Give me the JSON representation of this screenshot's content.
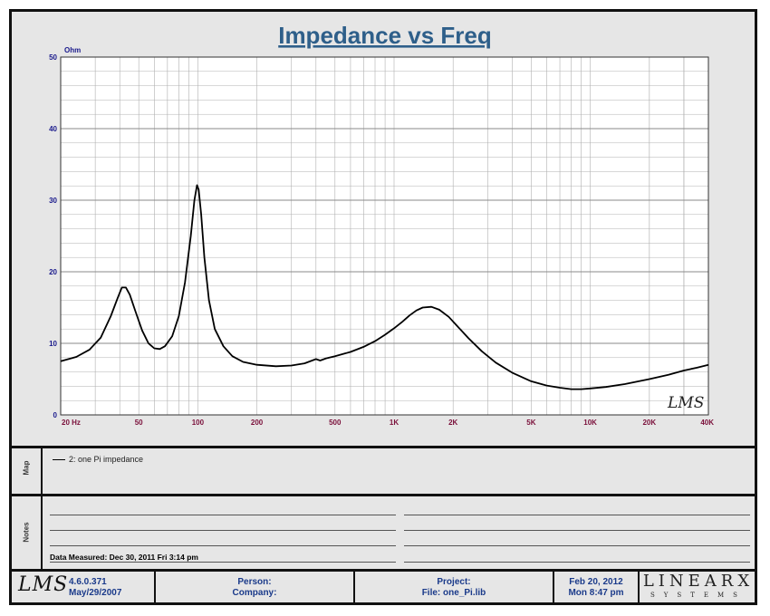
{
  "chart_data": {
    "type": "line",
    "title": "Impedance vs Freq",
    "ylabel": "Ohm",
    "xscale": "log",
    "xlim": [
      20,
      40000
    ],
    "ylim": [
      0,
      50
    ],
    "x_ticks": [
      {
        "value": 20,
        "label": "20  Hz"
      },
      {
        "value": 50,
        "label": "50"
      },
      {
        "value": 100,
        "label": "100"
      },
      {
        "value": 200,
        "label": "200"
      },
      {
        "value": 500,
        "label": "500"
      },
      {
        "value": 1000,
        "label": "1K"
      },
      {
        "value": 2000,
        "label": "2K"
      },
      {
        "value": 5000,
        "label": "5K"
      },
      {
        "value": 10000,
        "label": "10K"
      },
      {
        "value": 20000,
        "label": "20K"
      },
      {
        "value": 40000,
        "label": "40K"
      }
    ],
    "y_ticks": [
      0,
      10,
      20,
      30,
      40,
      50
    ],
    "grid": true,
    "series": [
      {
        "name": "2: one Pi impedance",
        "color": "#000000",
        "points": [
          [
            20,
            7.5
          ],
          [
            24,
            8.1
          ],
          [
            28,
            9.1
          ],
          [
            32,
            10.8
          ],
          [
            36,
            13.8
          ],
          [
            39,
            16.3
          ],
          [
            41,
            17.8
          ],
          [
            43,
            17.8
          ],
          [
            45,
            16.8
          ],
          [
            48,
            14.5
          ],
          [
            52,
            11.8
          ],
          [
            56,
            10.0
          ],
          [
            60,
            9.3
          ],
          [
            64,
            9.2
          ],
          [
            68,
            9.6
          ],
          [
            74,
            11.0
          ],
          [
            80,
            13.8
          ],
          [
            86,
            18.5
          ],
          [
            92,
            25.0
          ],
          [
            96,
            30.0
          ],
          [
            99,
            32.1
          ],
          [
            101,
            31.5
          ],
          [
            104,
            28.0
          ],
          [
            108,
            22.0
          ],
          [
            114,
            16.0
          ],
          [
            122,
            12.0
          ],
          [
            135,
            9.6
          ],
          [
            150,
            8.2
          ],
          [
            170,
            7.4
          ],
          [
            200,
            7.0
          ],
          [
            250,
            6.8
          ],
          [
            300,
            6.9
          ],
          [
            350,
            7.2
          ],
          [
            400,
            7.8
          ],
          [
            420,
            7.6
          ],
          [
            450,
            7.9
          ],
          [
            500,
            8.2
          ],
          [
            600,
            8.8
          ],
          [
            700,
            9.5
          ],
          [
            800,
            10.3
          ],
          [
            900,
            11.2
          ],
          [
            1000,
            12.1
          ],
          [
            1100,
            13.0
          ],
          [
            1200,
            13.9
          ],
          [
            1300,
            14.6
          ],
          [
            1400,
            15.0
          ],
          [
            1550,
            15.1
          ],
          [
            1700,
            14.7
          ],
          [
            1900,
            13.7
          ],
          [
            2100,
            12.4
          ],
          [
            2400,
            10.7
          ],
          [
            2800,
            8.9
          ],
          [
            3300,
            7.3
          ],
          [
            4000,
            5.9
          ],
          [
            5000,
            4.7
          ],
          [
            6000,
            4.1
          ],
          [
            7000,
            3.8
          ],
          [
            8000,
            3.6
          ],
          [
            9000,
            3.6
          ],
          [
            10000,
            3.7
          ],
          [
            12000,
            3.9
          ],
          [
            15000,
            4.3
          ],
          [
            20000,
            5.0
          ],
          [
            25000,
            5.6
          ],
          [
            30000,
            6.2
          ],
          [
            35000,
            6.6
          ],
          [
            40000,
            7.0
          ]
        ]
      }
    ]
  },
  "watermark": "LMS",
  "map": {
    "label": "Map",
    "legend_text": "2: one Pi impedance"
  },
  "notes": {
    "label": "Notes",
    "measured_text": "Data Measured: Dec 30, 2011  Fri  3:14 pm"
  },
  "footer": {
    "logo": "LMS",
    "version": "4.6.0.371",
    "version_date": "May/29/2007",
    "person_label": "Person:",
    "company_label": "Company:",
    "project_label": "Project:",
    "file_label": "File: one_Pi.lib",
    "date": "Feb 20, 2012",
    "time": "Mon  8:47 pm",
    "brand": "LINEARX",
    "brand_sub": "SYSTEMS"
  },
  "colors": {
    "title": "#2e5f8a",
    "axis_label": "#1a1a8c",
    "tick_x": "#7a0f3a",
    "grid": "#b0b0b0",
    "plot_bg": "#ffffff"
  }
}
